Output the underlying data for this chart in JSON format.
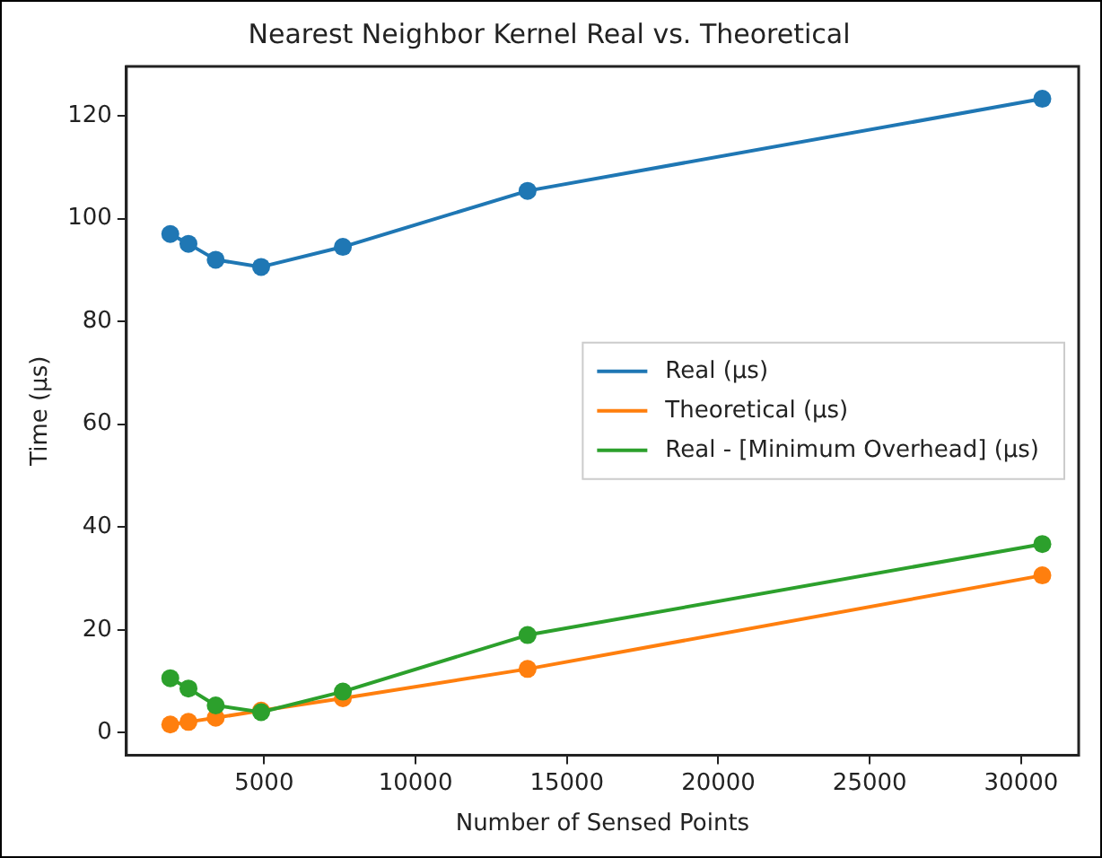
{
  "chart_data": {
    "type": "line",
    "title": "Nearest Neighbor Kernel Real vs. Theoretical",
    "xlabel": "Number of Sensed Points",
    "ylabel": "Time (μs)",
    "x": [
      1900,
      2500,
      3400,
      4900,
      7600,
      13700,
      30700
    ],
    "series": [
      {
        "name": "Real (μs)",
        "color": "#1f77b4",
        "values": [
          97.0,
          95.1,
          92.0,
          90.6,
          94.5,
          105.4,
          123.3
        ]
      },
      {
        "name": "Theoretical (μs)",
        "color": "#ff7f0e",
        "values": [
          1.6,
          2.1,
          2.9,
          4.3,
          6.7,
          12.4,
          30.6
        ]
      },
      {
        "name": "Real - [Minimum Overhead] (μs)",
        "color": "#2ca02c",
        "values": [
          10.6,
          8.6,
          5.3,
          4.0,
          8.0,
          19.0,
          36.7
        ]
      }
    ],
    "xlim": [
      450,
      31900
    ],
    "xticks": [
      5000,
      10000,
      15000,
      20000,
      25000,
      30000
    ],
    "ylim": [
      -4.4,
      129.6
    ],
    "yticks": [
      0,
      20,
      40,
      60,
      80,
      100,
      120
    ],
    "grid": false,
    "legend": "right",
    "marker": "circle",
    "line_style": "solid"
  }
}
